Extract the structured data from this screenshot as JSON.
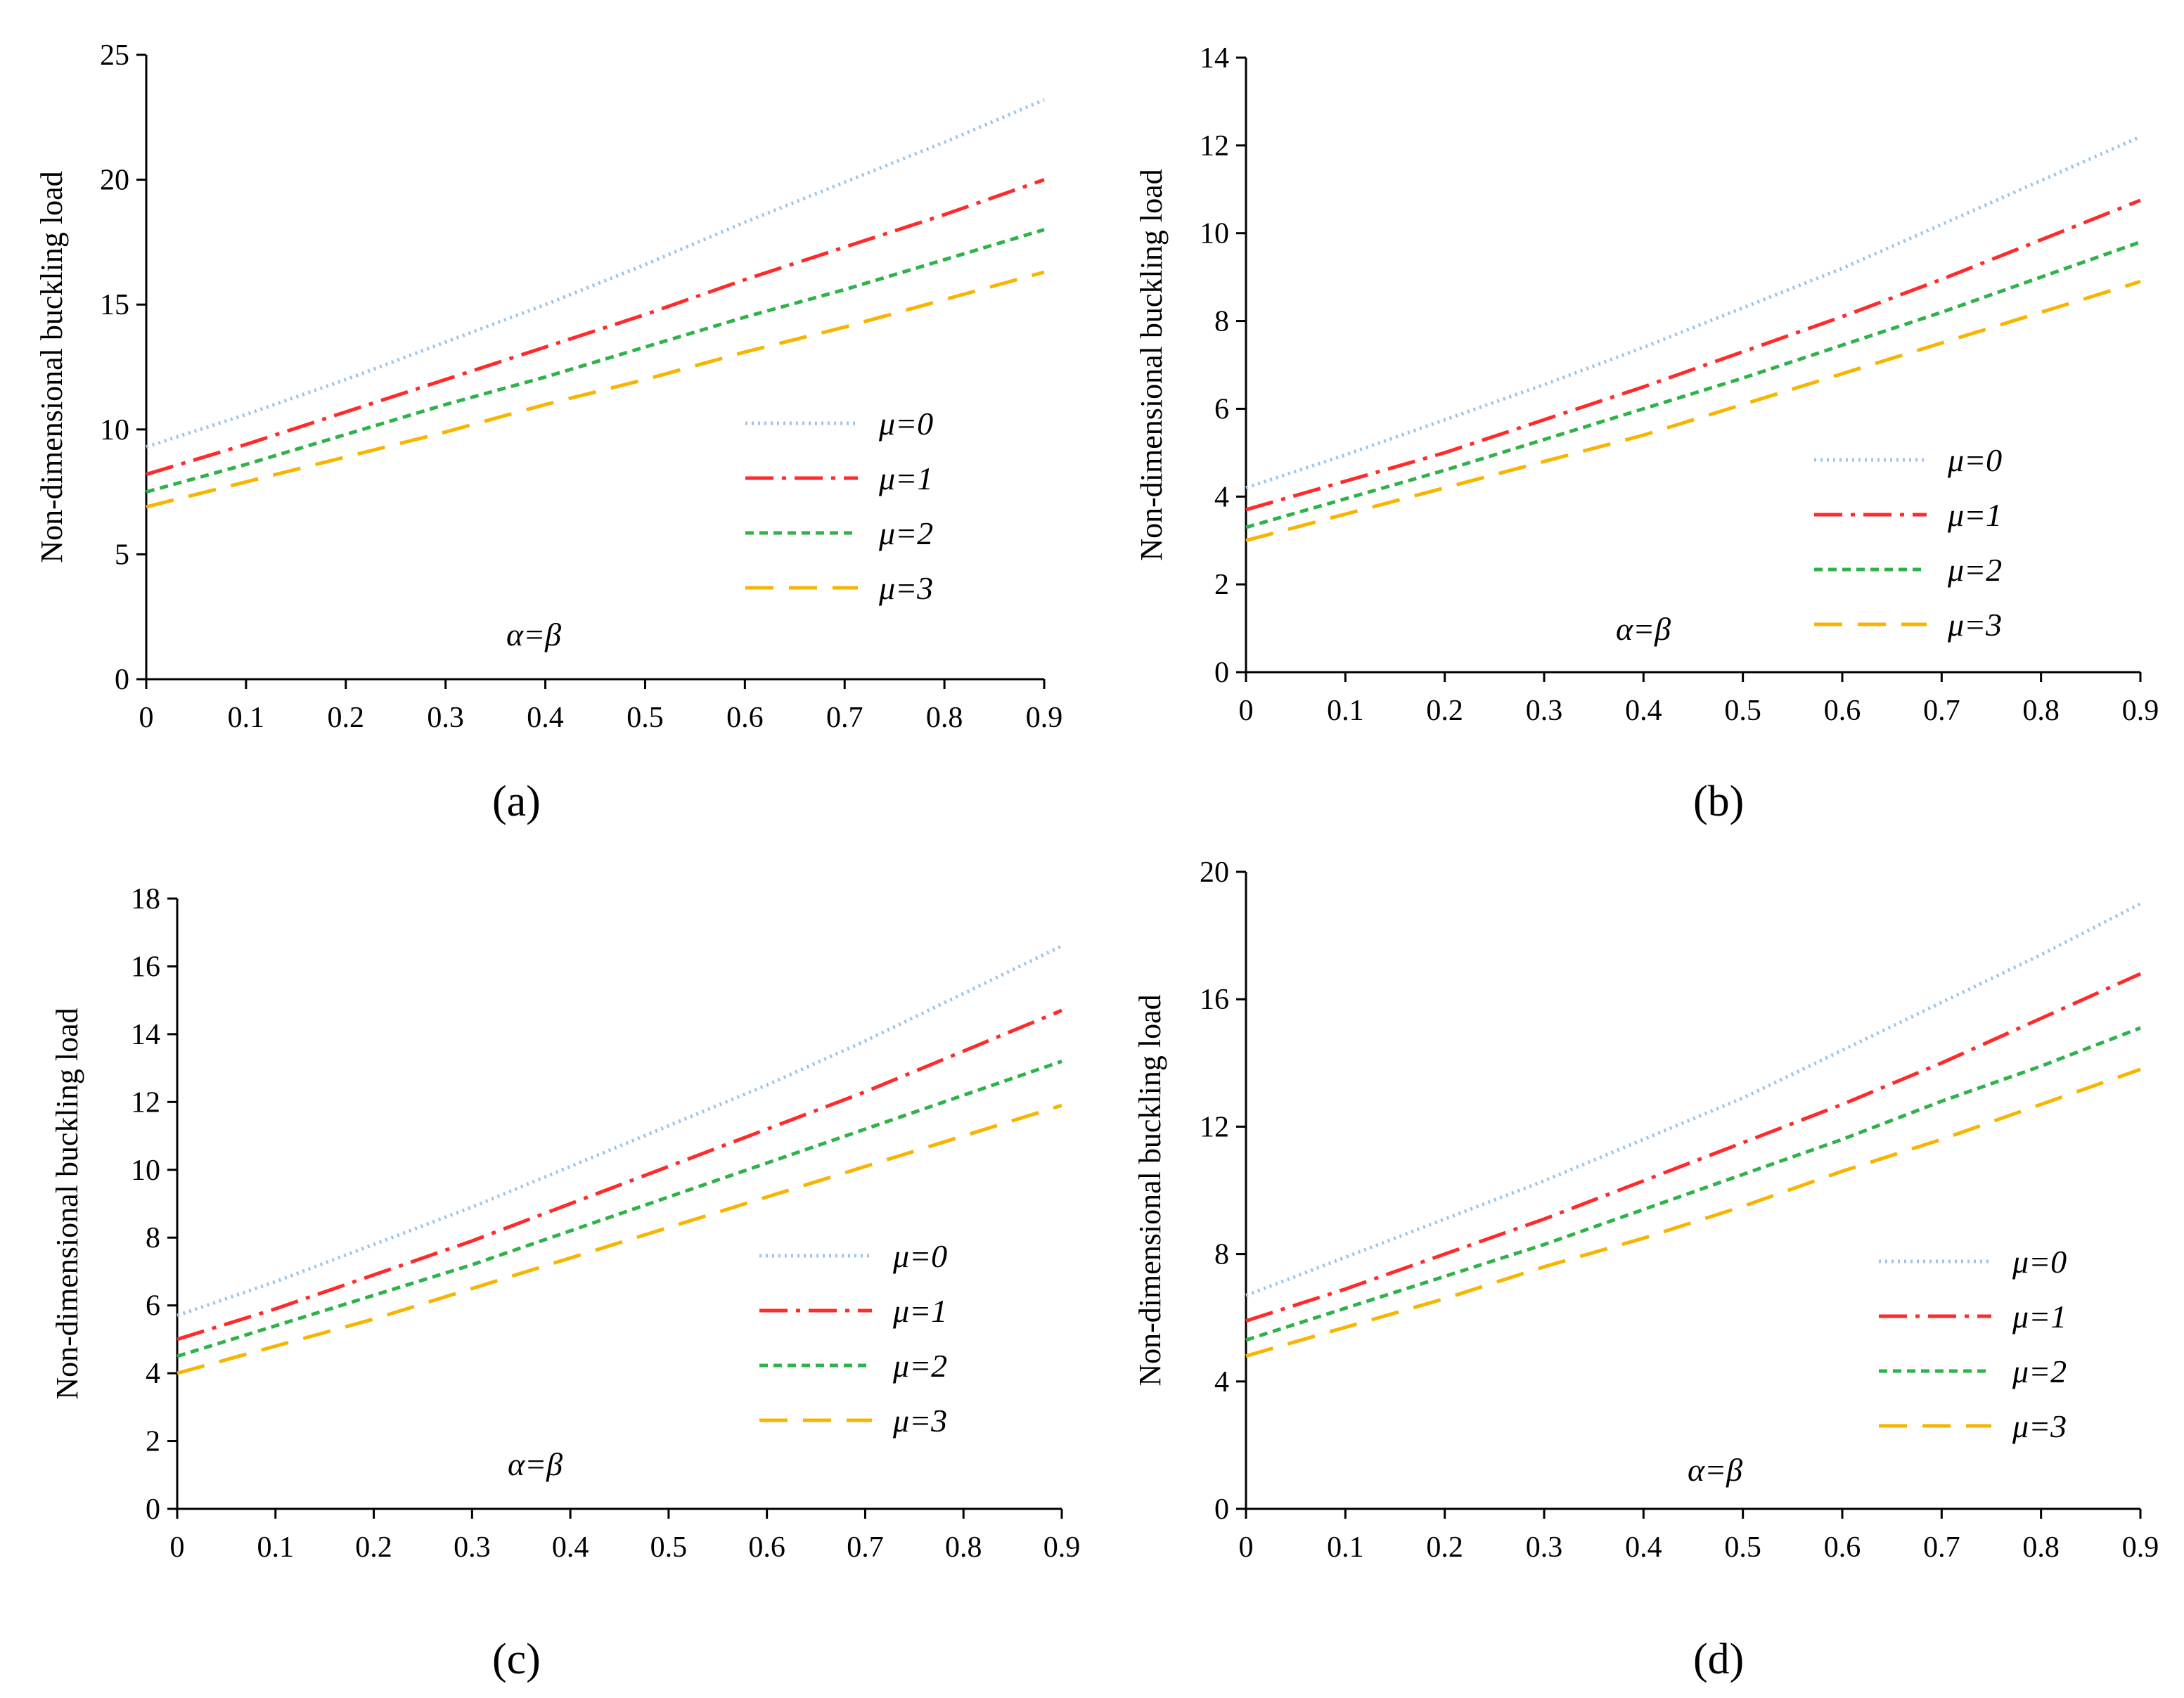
{
  "series_styles": [
    {
      "name": "μ=0",
      "color": "#9ec5e8",
      "dash": "3,6"
    },
    {
      "name": "μ=1",
      "color": "#ff2a2a",
      "dash": "40,12,6,12"
    },
    {
      "name": "μ=2",
      "color": "#2fb24a",
      "dash": "12,8"
    },
    {
      "name": "μ=3",
      "color": "#f7b500",
      "dash": "40,22"
    }
  ],
  "chart_data": [
    {
      "type": "line",
      "panel": "a",
      "caption": "(a)",
      "xlabel": "",
      "ylabel": "Non-dimensional buckling load",
      "annotation": "α=β",
      "x": [
        0,
        0.1,
        0.2,
        0.3,
        0.4,
        0.5,
        0.6,
        0.7,
        0.8,
        0.9
      ],
      "xticks": [
        "0",
        "0.1",
        "0.2",
        "0.3",
        "0.4",
        "0.5",
        "0.6",
        "0.7",
        "0.8",
        "0.9"
      ],
      "ylim": [
        0,
        25
      ],
      "yticks": [
        0,
        5,
        10,
        15,
        20,
        25
      ],
      "series": [
        {
          "name": "μ=0",
          "values": [
            9.3,
            10.6,
            12.0,
            13.5,
            15.0,
            16.6,
            18.3,
            19.9,
            21.5,
            23.2
          ]
        },
        {
          "name": "μ=1",
          "values": [
            8.2,
            9.4,
            10.7,
            12.0,
            13.3,
            14.6,
            16.0,
            17.3,
            18.6,
            20.0
          ]
        },
        {
          "name": "μ=2",
          "values": [
            7.5,
            8.6,
            9.8,
            11.0,
            12.1,
            13.3,
            14.5,
            15.6,
            16.8,
            18.0
          ]
        },
        {
          "name": "μ=3",
          "values": [
            6.9,
            7.9,
            8.9,
            9.9,
            11.0,
            12.0,
            13.1,
            14.1,
            15.2,
            16.3
          ]
        }
      ]
    },
    {
      "type": "line",
      "panel": "b",
      "caption": "(b)",
      "xlabel": "",
      "ylabel": "Non-dimensional buckling load",
      "annotation": "α=β",
      "x": [
        0,
        0.1,
        0.2,
        0.3,
        0.4,
        0.5,
        0.6,
        0.7,
        0.8,
        0.9
      ],
      "xticks": [
        "0",
        "0.1",
        "0.2",
        "0.3",
        "0.4",
        "0.5",
        "0.6",
        "0.7",
        "0.8",
        "0.9"
      ],
      "ylim": [
        0,
        14
      ],
      "yticks": [
        0,
        2,
        4,
        6,
        8,
        10,
        12,
        14
      ],
      "series": [
        {
          "name": "μ=0",
          "values": [
            4.2,
            4.95,
            5.75,
            6.55,
            7.4,
            8.3,
            9.2,
            10.2,
            11.2,
            12.2
          ]
        },
        {
          "name": "μ=1",
          "values": [
            3.7,
            4.35,
            5.0,
            5.75,
            6.5,
            7.3,
            8.1,
            8.95,
            9.85,
            10.75
          ]
        },
        {
          "name": "μ=2",
          "values": [
            3.3,
            3.95,
            4.6,
            5.3,
            6.0,
            6.7,
            7.45,
            8.2,
            9.0,
            9.8
          ]
        },
        {
          "name": "μ=3",
          "values": [
            3.0,
            3.6,
            4.2,
            4.8,
            5.4,
            6.1,
            6.8,
            7.5,
            8.2,
            8.9
          ]
        }
      ]
    },
    {
      "type": "line",
      "panel": "c",
      "caption": "(c)",
      "xlabel": "",
      "ylabel": "Non-dimensional buckling load",
      "annotation": "α=β",
      "x": [
        0,
        0.1,
        0.2,
        0.3,
        0.4,
        0.5,
        0.6,
        0.7,
        0.8,
        0.9
      ],
      "xticks": [
        "0",
        "0.1",
        "0.2",
        "0.3",
        "0.4",
        "0.5",
        "0.6",
        "0.7",
        "0.8",
        "0.9"
      ],
      "ylim": [
        0,
        18
      ],
      "yticks": [
        0,
        2,
        4,
        6,
        8,
        10,
        12,
        14,
        16,
        18
      ],
      "series": [
        {
          "name": "μ=0",
          "values": [
            5.7,
            6.7,
            7.8,
            8.9,
            10.1,
            11.3,
            12.5,
            13.8,
            15.2,
            16.6
          ]
        },
        {
          "name": "μ=1",
          "values": [
            5.0,
            5.9,
            6.9,
            7.9,
            9.0,
            10.1,
            11.2,
            12.3,
            13.5,
            14.7
          ]
        },
        {
          "name": "μ=2",
          "values": [
            4.5,
            5.4,
            6.3,
            7.2,
            8.2,
            9.2,
            10.2,
            11.2,
            12.2,
            13.2
          ]
        },
        {
          "name": "μ=3",
          "values": [
            4.0,
            4.8,
            5.6,
            6.5,
            7.4,
            8.3,
            9.2,
            10.1,
            11.0,
            11.9
          ]
        }
      ]
    },
    {
      "type": "line",
      "panel": "d",
      "caption": "(d)",
      "xlabel": "",
      "ylabel": "Non-dimensional buckling load",
      "annotation": "α=β",
      "x": [
        0,
        0.1,
        0.2,
        0.3,
        0.4,
        0.5,
        0.6,
        0.7,
        0.8,
        0.9
      ],
      "xticks": [
        "0",
        "0.1",
        "0.2",
        "0.3",
        "0.4",
        "0.5",
        "0.6",
        "0.7",
        "0.8",
        "0.9"
      ],
      "ylim": [
        0,
        20
      ],
      "yticks": [
        0,
        4,
        8,
        12,
        16,
        20
      ],
      "series": [
        {
          "name": "μ=0",
          "values": [
            6.7,
            7.9,
            9.1,
            10.3,
            11.6,
            12.9,
            14.4,
            15.9,
            17.4,
            19.0
          ]
        },
        {
          "name": "μ=1",
          "values": [
            5.9,
            6.9,
            8.0,
            9.1,
            10.3,
            11.5,
            12.7,
            14.0,
            15.4,
            16.8
          ]
        },
        {
          "name": "μ=2",
          "values": [
            5.3,
            6.3,
            7.3,
            8.3,
            9.4,
            10.5,
            11.6,
            12.8,
            13.9,
            15.1
          ]
        },
        {
          "name": "μ=3",
          "values": [
            4.8,
            5.7,
            6.6,
            7.6,
            8.5,
            9.5,
            10.6,
            11.6,
            12.7,
            13.8
          ]
        }
      ]
    }
  ]
}
